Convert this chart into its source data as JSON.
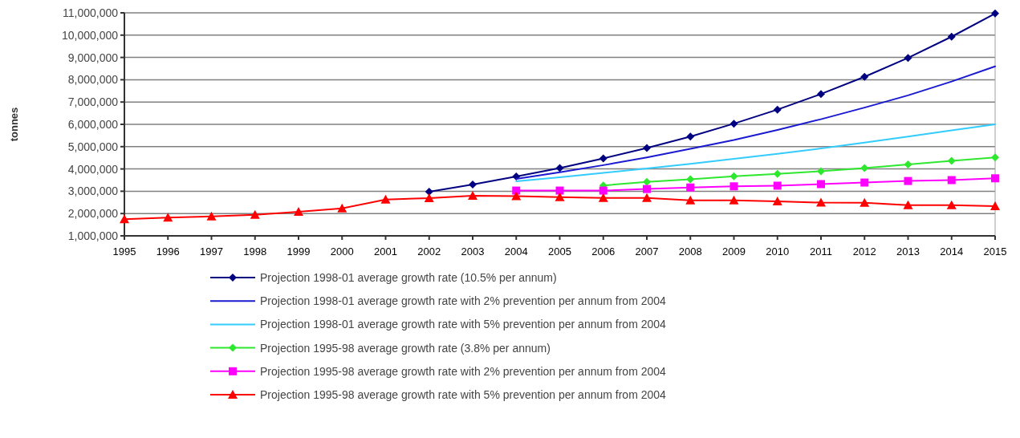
{
  "chart_data": {
    "type": "line",
    "ylabel": "tonnes",
    "categories": [
      "1995",
      "1996",
      "1997",
      "1998",
      "1999",
      "2000",
      "2001",
      "2002",
      "2003",
      "2004",
      "2005",
      "2006",
      "2007",
      "2008",
      "2009",
      "2010",
      "2011",
      "2012",
      "2013",
      "2014",
      "2015"
    ],
    "series": [
      {
        "name": "Projection 1998-01 average growth rate (10.5% per annum)",
        "color": "#000080",
        "marker": "diamond",
        "values": [
          null,
          null,
          null,
          null,
          null,
          null,
          null,
          2980000,
          3300000,
          3660000,
          4040000,
          4470000,
          4940000,
          5450000,
          6030000,
          6660000,
          7360000,
          8130000,
          8980000,
          9930000,
          10970000
        ]
      },
      {
        "name": "Projection 1998-01 average growth rate with 2% prevention per annum from 2004",
        "color": "#1a1ad0",
        "marker": "none",
        "values": [
          null,
          null,
          null,
          null,
          null,
          null,
          null,
          null,
          null,
          3550000,
          3850000,
          4170000,
          4520000,
          4900000,
          5300000,
          5750000,
          6230000,
          6750000,
          7300000,
          7920000,
          8600000
        ]
      },
      {
        "name": "Projection 1998-01 average growth rate with 5% prevention per annum from 2004",
        "color": "#33ccff",
        "marker": "none",
        "values": [
          null,
          null,
          null,
          null,
          null,
          null,
          null,
          null,
          null,
          3450000,
          3630000,
          3820000,
          4020000,
          4230000,
          4450000,
          4680000,
          4920000,
          5180000,
          5450000,
          5730000,
          6000000
        ]
      },
      {
        "name": "Projection 1995-98 average growth rate (3.8% per annum)",
        "color": "#2ee82e",
        "marker": "diamond",
        "values": [
          null,
          null,
          null,
          null,
          null,
          null,
          null,
          null,
          null,
          null,
          null,
          3260000,
          3420000,
          3540000,
          3670000,
          3780000,
          3900000,
          4040000,
          4200000,
          4360000,
          4520000
        ]
      },
      {
        "name": "Projection 1995-98 average growth rate with 2% prevention per annum from 2004",
        "color": "#ff00ff",
        "marker": "square",
        "values": [
          null,
          null,
          null,
          null,
          null,
          null,
          null,
          null,
          null,
          3030000,
          3030000,
          3030000,
          3100000,
          3170000,
          3220000,
          3250000,
          3320000,
          3390000,
          3460000,
          3500000,
          3580000
        ]
      },
      {
        "name": "Projection 1995-98 average growth rate with 5% prevention per annum from 2004",
        "color": "#ff0000",
        "marker": "triangle",
        "values": [
          1750000,
          1820000,
          1870000,
          1940000,
          2080000,
          2230000,
          2630000,
          2690000,
          2800000,
          2780000,
          2740000,
          2700000,
          2700000,
          2590000,
          2590000,
          2550000,
          2490000,
          2480000,
          2380000,
          2380000,
          2330000
        ]
      }
    ],
    "ylim": [
      1000000,
      11000000
    ],
    "yticks": [
      {
        "value": 1000000,
        "label": "1,000,000"
      },
      {
        "value": 2000000,
        "label": "2,000,000"
      },
      {
        "value": 3000000,
        "label": "3,000,000"
      },
      {
        "value": 4000000,
        "label": "4,000,000"
      },
      {
        "value": 5000000,
        "label": "5,000,000"
      },
      {
        "value": 6000000,
        "label": "6,000,000"
      },
      {
        "value": 7000000,
        "label": "7,000,000"
      },
      {
        "value": 8000000,
        "label": "8,000,000"
      },
      {
        "value": 9000000,
        "label": "9,000,000"
      },
      {
        "value": 10000000,
        "label": "10,000,000"
      },
      {
        "value": 11000000,
        "label": "11,000,000"
      }
    ],
    "grid": "y",
    "legend": "bottom",
    "line_style": "solid"
  }
}
